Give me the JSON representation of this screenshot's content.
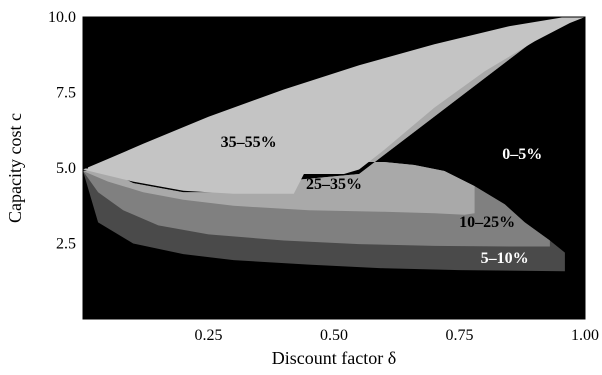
{
  "chart_data": {
    "type": "area",
    "title": "",
    "xlabel": "Discount factor δ",
    "ylabel": "Capacity cost c",
    "xlim": [
      0.0,
      1.0
    ],
    "ylim": [
      0.0,
      10.0
    ],
    "xticks": [
      0.25,
      0.5,
      0.75,
      1.0
    ],
    "xtick_labels": [
      "0.25",
      "0.50",
      "0.75",
      "1.00"
    ],
    "yticks": [
      2.5,
      5.0,
      7.5,
      10.0
    ],
    "ytick_labels": [
      "2.5",
      "5.0",
      "7.5",
      "10.0"
    ],
    "grid": false,
    "legend": "none",
    "background_color": "#000000",
    "regions": [
      {
        "label": "0–5%",
        "color": "#000000",
        "label_color": "#ffffff",
        "label_at": [
          0.875,
          5.3
        ],
        "polygon": [
          [
            0,
            0
          ],
          [
            1,
            0
          ],
          [
            1,
            10
          ],
          [
            0,
            10
          ]
        ]
      },
      {
        "label": "5–10%",
        "color": "#4a4a4a",
        "label_color": "#ffffff",
        "label_at": [
          0.84,
          1.85
        ],
        "polygon": [
          [
            0.0,
            4.9
          ],
          [
            0.03,
            3.2
          ],
          [
            0.1,
            2.5
          ],
          [
            0.2,
            2.15
          ],
          [
            0.3,
            1.95
          ],
          [
            0.45,
            1.8
          ],
          [
            0.6,
            1.68
          ],
          [
            0.75,
            1.62
          ],
          [
            0.96,
            1.58
          ],
          [
            0.96,
            2.2
          ],
          [
            0.93,
            2.6
          ],
          [
            0.88,
            3.2
          ],
          [
            0.84,
            3.8
          ],
          [
            0.78,
            4.4
          ],
          [
            0.72,
            4.9
          ],
          [
            0.66,
            5.1
          ],
          [
            0.6,
            5.2
          ],
          [
            0.55,
            5.2
          ],
          [
            0.6,
            6.0
          ],
          [
            0.7,
            7.3
          ],
          [
            0.8,
            8.5
          ],
          [
            0.9,
            9.4
          ],
          [
            1.0,
            10.0
          ],
          [
            0.96,
            10.0
          ],
          [
            0.55,
            4.8
          ],
          [
            0.42,
            4.6
          ],
          [
            0.3,
            4.2
          ],
          [
            0.2,
            4.2
          ],
          [
            0.1,
            4.5
          ],
          [
            0.04,
            5.0
          ]
        ]
      },
      {
        "label": "10–25%",
        "color": "#808080",
        "label_color": "#000000",
        "label_at": [
          0.805,
          3.05
        ],
        "polygon": [
          [
            0.0,
            4.9
          ],
          [
            0.03,
            4.2
          ],
          [
            0.08,
            3.6
          ],
          [
            0.15,
            3.1
          ],
          [
            0.25,
            2.8
          ],
          [
            0.4,
            2.6
          ],
          [
            0.55,
            2.48
          ],
          [
            0.7,
            2.42
          ],
          [
            0.85,
            2.4
          ],
          [
            0.93,
            2.4
          ],
          [
            0.93,
            2.6
          ],
          [
            0.88,
            3.2
          ],
          [
            0.84,
            3.8
          ],
          [
            0.78,
            4.4
          ],
          [
            0.72,
            4.9
          ],
          [
            0.66,
            5.1
          ],
          [
            0.6,
            5.2
          ],
          [
            0.55,
            5.2
          ],
          [
            0.6,
            6.0
          ],
          [
            0.7,
            7.3
          ],
          [
            0.8,
            8.5
          ],
          [
            0.9,
            9.4
          ],
          [
            1.0,
            10.0
          ],
          [
            0.96,
            10.0
          ],
          [
            0.55,
            4.8
          ],
          [
            0.42,
            4.6
          ],
          [
            0.3,
            4.2
          ],
          [
            0.2,
            4.2
          ],
          [
            0.1,
            4.5
          ],
          [
            0.04,
            5.0
          ]
        ]
      },
      {
        "label": "25–35%",
        "color": "#a9a9a9",
        "label_color": "#000000",
        "label_at": [
          0.5,
          4.3
        ],
        "polygon": [
          [
            0.0,
            4.9
          ],
          [
            0.05,
            4.55
          ],
          [
            0.12,
            4.2
          ],
          [
            0.2,
            3.95
          ],
          [
            0.3,
            3.75
          ],
          [
            0.45,
            3.6
          ],
          [
            0.6,
            3.55
          ],
          [
            0.7,
            3.5
          ],
          [
            0.76,
            3.45
          ],
          [
            0.78,
            3.5
          ],
          [
            0.78,
            4.4
          ],
          [
            0.72,
            4.9
          ],
          [
            0.66,
            5.1
          ],
          [
            0.6,
            5.2
          ],
          [
            0.56,
            5.2
          ],
          [
            0.6,
            6.0
          ],
          [
            0.7,
            7.3
          ],
          [
            0.8,
            8.5
          ],
          [
            0.9,
            9.4
          ],
          [
            1.0,
            10.0
          ],
          [
            0.96,
            10.0
          ],
          [
            0.55,
            4.8
          ],
          [
            0.42,
            4.6
          ],
          [
            0.3,
            4.2
          ],
          [
            0.2,
            4.2
          ],
          [
            0.1,
            4.5
          ],
          [
            0.04,
            5.0
          ]
        ]
      },
      {
        "label": "35–55%",
        "color": "#c4c4c4",
        "label_color": "#000000",
        "label_at": [
          0.33,
          5.7
        ],
        "polygon": [
          [
            0.0,
            4.95
          ],
          [
            0.1,
            4.55
          ],
          [
            0.2,
            4.25
          ],
          [
            0.3,
            4.15
          ],
          [
            0.42,
            4.15
          ],
          [
            0.44,
            4.8
          ],
          [
            0.52,
            4.8
          ],
          [
            0.55,
            4.95
          ],
          [
            0.6,
            5.6
          ],
          [
            0.7,
            7.0
          ],
          [
            0.8,
            8.2
          ],
          [
            0.9,
            9.2
          ],
          [
            0.97,
            9.8
          ],
          [
            1.0,
            10.0
          ],
          [
            0.96,
            10.0
          ],
          [
            0.85,
            9.7
          ],
          [
            0.7,
            9.1
          ],
          [
            0.55,
            8.4
          ],
          [
            0.4,
            7.6
          ],
          [
            0.25,
            6.7
          ],
          [
            0.12,
            5.8
          ],
          [
            0.05,
            5.3
          ]
        ]
      }
    ]
  }
}
